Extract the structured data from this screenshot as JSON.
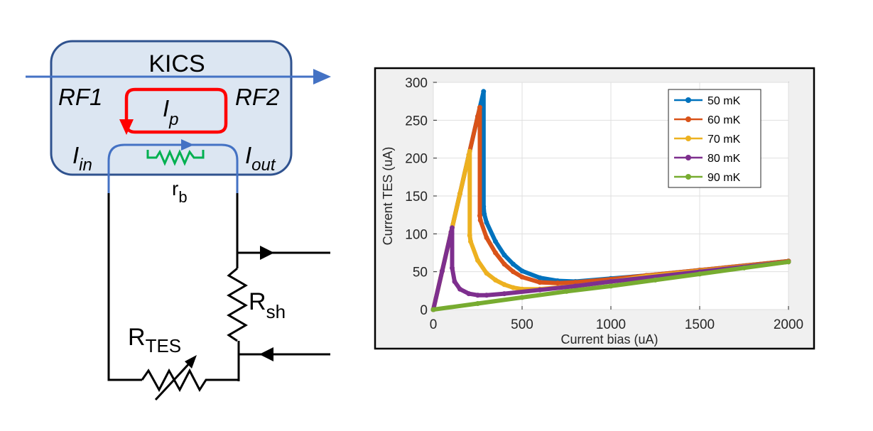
{
  "circuit": {
    "block_title": "KICS",
    "port_left": "RF1",
    "port_right": "RF2",
    "pump_current": {
      "main": "I",
      "sub": "p"
    },
    "input_current": {
      "main": "I",
      "sub": "in"
    },
    "output_current": {
      "main": "I",
      "sub": "out"
    },
    "bias_resistor": {
      "main": "r",
      "sub": "b"
    },
    "shunt_resistor": {
      "main": "R",
      "sub": "sh"
    },
    "tes_resistor": {
      "main": "R",
      "sub": "TES"
    },
    "colors": {
      "block_fill": "#dce6f2",
      "block_border": "#2f528f",
      "rf_line": "#4472c4",
      "pump_loop": "#ff0000",
      "rb_resistor": "#00b050",
      "wire": "#000000"
    }
  },
  "chart_data": {
    "type": "line",
    "xlabel": "Current bias (uA)",
    "ylabel": "Current TES (uA)",
    "xlim": [
      0,
      2000
    ],
    "ylim": [
      0,
      300
    ],
    "xticks": [
      0,
      500,
      1000,
      1500,
      2000
    ],
    "yticks": [
      0,
      50,
      100,
      150,
      200,
      250,
      300
    ],
    "grid": true,
    "legend_position": "top-right",
    "series": [
      {
        "name": "50 mK",
        "color": "#0072bd",
        "x": [
          0,
          50,
          100,
          150,
          200,
          250,
          283,
          283,
          287,
          300,
          350,
          400,
          450,
          500,
          600,
          700,
          800,
          1000,
          1200,
          1500,
          2000
        ],
        "y": [
          0,
          51,
          102,
          153,
          204,
          255,
          288,
          136,
          126,
          115,
          90,
          72,
          60,
          51,
          42,
          38,
          37,
          41,
          45,
          52,
          64
        ]
      },
      {
        "name": "60 mK",
        "color": "#d95319",
        "x": [
          0,
          50,
          100,
          150,
          200,
          250,
          262,
          262,
          265,
          300,
          350,
          400,
          450,
          500,
          600,
          700,
          800,
          1000,
          1200,
          1500,
          2000
        ],
        "y": [
          0,
          51,
          102,
          153,
          204,
          255,
          267,
          124,
          118,
          95,
          75,
          60,
          50,
          43,
          36,
          35,
          36,
          40,
          45,
          52,
          64
        ]
      },
      {
        "name": "70 mK",
        "color": "#edb120",
        "x": [
          0,
          50,
          100,
          150,
          200,
          205,
          205,
          210,
          250,
          300,
          350,
          400,
          450,
          500,
          600,
          800,
          1000,
          1200,
          1500,
          2000
        ],
        "y": [
          0,
          51,
          102,
          153,
          204,
          209,
          98,
          90,
          65,
          48,
          39,
          33,
          29,
          27,
          27,
          31,
          37,
          44,
          51,
          63
        ]
      },
      {
        "name": "80 mK",
        "color": "#7e2f8e",
        "x": [
          0,
          50,
          100,
          106,
          106,
          120,
          150,
          200,
          250,
          300,
          400,
          600,
          800,
          1000,
          1500,
          2000
        ],
        "y": [
          0,
          51,
          102,
          108,
          55,
          37,
          27,
          21,
          19,
          19,
          21,
          26,
          31,
          37,
          50,
          63
        ]
      },
      {
        "name": "90 mK",
        "color": "#77ac30",
        "x": [
          0,
          250,
          500,
          750,
          1000,
          1250,
          1500,
          1750,
          2000
        ],
        "y": [
          0,
          8,
          16,
          24,
          31,
          39,
          47,
          55,
          63
        ]
      }
    ]
  }
}
